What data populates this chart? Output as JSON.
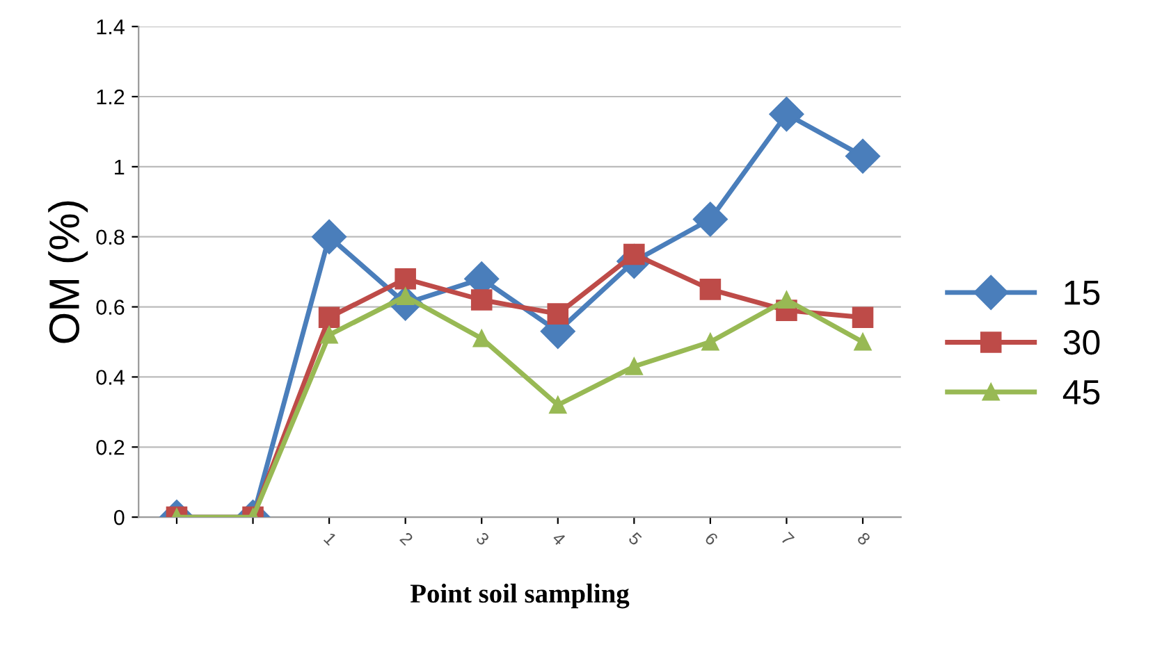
{
  "chart_data": {
    "type": "line",
    "xlabel": "Point soil sampling",
    "ylabel": "OM (%)",
    "categories": [
      null,
      null,
      "1",
      "2",
      "3",
      "4",
      "5",
      "6",
      "7",
      "8"
    ],
    "series": [
      {
        "name": "15",
        "color": "#4a7ebb",
        "marker": "diamond",
        "values": [
          0,
          0,
          0.8,
          0.61,
          0.68,
          0.53,
          0.73,
          0.85,
          1.15,
          1.03
        ]
      },
      {
        "name": "30",
        "color": "#be4b48",
        "marker": "square",
        "values": [
          0,
          0,
          0.57,
          0.68,
          0.62,
          0.58,
          0.75,
          0.65,
          0.59,
          0.57
        ]
      },
      {
        "name": "45",
        "color": "#98b954",
        "marker": "triangle",
        "values": [
          0,
          0,
          0.52,
          0.63,
          0.51,
          0.32,
          0.43,
          0.5,
          0.62,
          0.5
        ]
      }
    ],
    "ylim": [
      0,
      1.4
    ],
    "yticks": [
      0,
      0.2,
      0.4,
      0.6,
      0.8,
      1,
      1.2,
      1.4
    ],
    "grid": "y",
    "legend": "right",
    "line_style": "solid"
  }
}
